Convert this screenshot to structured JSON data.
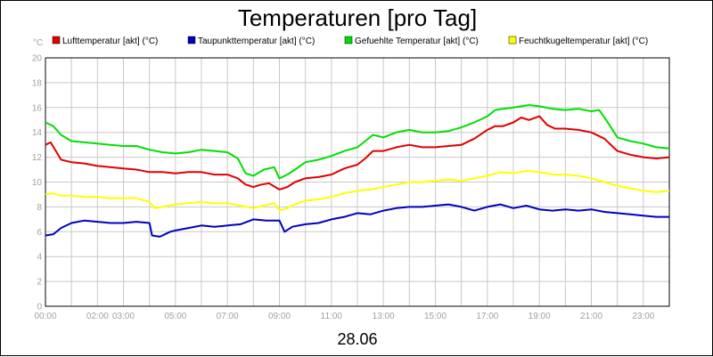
{
  "chart_data": {
    "type": "line",
    "title": "Temperaturen [pro Tag]",
    "y_unit_label": "°C",
    "date_label": "28.06",
    "ylim": [
      0,
      20
    ],
    "y_ticks": [
      0,
      2,
      4,
      6,
      8,
      10,
      12,
      14,
      16,
      18,
      20
    ],
    "x_ticks": [
      {
        "t": 0.0,
        "label": "00:00"
      },
      {
        "t": 2.0,
        "label": "02:00"
      },
      {
        "t": 3.0,
        "label": "03:00"
      },
      {
        "t": 5.0,
        "label": "05:00"
      },
      {
        "t": 7.0,
        "label": "07:00"
      },
      {
        "t": 9.0,
        "label": "09:00"
      },
      {
        "t": 11.0,
        "label": "11:00"
      },
      {
        "t": 13.0,
        "label": "13:00"
      },
      {
        "t": 15.0,
        "label": "15:00"
      },
      {
        "t": 17.0,
        "label": "17:00"
      },
      {
        "t": 19.0,
        "label": "19:00"
      },
      {
        "t": 21.0,
        "label": "21:00"
      },
      {
        "t": 23.0,
        "label": "23:00"
      }
    ],
    "x_grid_hours": [
      0,
      1,
      2,
      3,
      4,
      5,
      6,
      7,
      8,
      9,
      10,
      11,
      12,
      13,
      14,
      15,
      16,
      17,
      18,
      19,
      20,
      21,
      22,
      23,
      24
    ],
    "xlim_hours": [
      0,
      24
    ],
    "grid": true,
    "legend_position": "top",
    "series": [
      {
        "name": "Lufttemperatur [akt] (°C)",
        "color": "#e00000",
        "points": [
          [
            0,
            13.0
          ],
          [
            0.2,
            13.2
          ],
          [
            0.4,
            12.5
          ],
          [
            0.6,
            11.8
          ],
          [
            1,
            11.6
          ],
          [
            1.5,
            11.5
          ],
          [
            2,
            11.3
          ],
          [
            2.5,
            11.2
          ],
          [
            3,
            11.1
          ],
          [
            3.5,
            11.0
          ],
          [
            4,
            10.8
          ],
          [
            4.5,
            10.8
          ],
          [
            5,
            10.7
          ],
          [
            5.5,
            10.8
          ],
          [
            6,
            10.8
          ],
          [
            6.5,
            10.6
          ],
          [
            7,
            10.6
          ],
          [
            7.4,
            10.3
          ],
          [
            7.7,
            9.8
          ],
          [
            8,
            9.6
          ],
          [
            8.3,
            9.8
          ],
          [
            8.6,
            9.9
          ],
          [
            9,
            9.4
          ],
          [
            9.3,
            9.6
          ],
          [
            9.6,
            10.0
          ],
          [
            10,
            10.3
          ],
          [
            10.5,
            10.4
          ],
          [
            11,
            10.6
          ],
          [
            11.5,
            11.1
          ],
          [
            12,
            11.4
          ],
          [
            12.3,
            11.9
          ],
          [
            12.6,
            12.5
          ],
          [
            13,
            12.5
          ],
          [
            13.5,
            12.8
          ],
          [
            14,
            13.0
          ],
          [
            14.5,
            12.8
          ],
          [
            15,
            12.8
          ],
          [
            15.5,
            12.9
          ],
          [
            16,
            13.0
          ],
          [
            16.5,
            13.5
          ],
          [
            17,
            14.2
          ],
          [
            17.3,
            14.5
          ],
          [
            17.6,
            14.5
          ],
          [
            18,
            14.8
          ],
          [
            18.3,
            15.2
          ],
          [
            18.6,
            15.0
          ],
          [
            19,
            15.3
          ],
          [
            19.3,
            14.6
          ],
          [
            19.6,
            14.3
          ],
          [
            20,
            14.3
          ],
          [
            20.5,
            14.2
          ],
          [
            21,
            14.0
          ],
          [
            21.5,
            13.5
          ],
          [
            22,
            12.5
          ],
          [
            22.5,
            12.2
          ],
          [
            23,
            12.0
          ],
          [
            23.5,
            11.9
          ],
          [
            24,
            12.0
          ]
        ]
      },
      {
        "name": "Taupunkttemperatur [akt] (°C)",
        "color": "#0000c0",
        "points": [
          [
            0,
            5.7
          ],
          [
            0.3,
            5.8
          ],
          [
            0.6,
            6.3
          ],
          [
            1,
            6.7
          ],
          [
            1.5,
            6.9
          ],
          [
            2,
            6.8
          ],
          [
            2.5,
            6.7
          ],
          [
            3,
            6.7
          ],
          [
            3.5,
            6.8
          ],
          [
            4,
            6.7
          ],
          [
            4.1,
            5.7
          ],
          [
            4.4,
            5.6
          ],
          [
            4.8,
            6.0
          ],
          [
            5,
            6.1
          ],
          [
            5.5,
            6.3
          ],
          [
            6,
            6.5
          ],
          [
            6.5,
            6.4
          ],
          [
            7,
            6.5
          ],
          [
            7.5,
            6.6
          ],
          [
            8,
            7.0
          ],
          [
            8.5,
            6.9
          ],
          [
            9,
            6.9
          ],
          [
            9.2,
            6.0
          ],
          [
            9.5,
            6.4
          ],
          [
            10,
            6.6
          ],
          [
            10.5,
            6.7
          ],
          [
            11,
            7.0
          ],
          [
            11.5,
            7.2
          ],
          [
            12,
            7.5
          ],
          [
            12.5,
            7.4
          ],
          [
            13,
            7.7
          ],
          [
            13.5,
            7.9
          ],
          [
            14,
            8.0
          ],
          [
            14.5,
            8.0
          ],
          [
            15,
            8.1
          ],
          [
            15.5,
            8.2
          ],
          [
            16,
            8.0
          ],
          [
            16.5,
            7.7
          ],
          [
            17,
            8.0
          ],
          [
            17.5,
            8.2
          ],
          [
            18,
            7.9
          ],
          [
            18.5,
            8.1
          ],
          [
            19,
            7.8
          ],
          [
            19.5,
            7.7
          ],
          [
            20,
            7.8
          ],
          [
            20.5,
            7.7
          ],
          [
            21,
            7.8
          ],
          [
            21.5,
            7.6
          ],
          [
            22,
            7.5
          ],
          [
            22.5,
            7.4
          ],
          [
            23,
            7.3
          ],
          [
            23.5,
            7.2
          ],
          [
            24,
            7.2
          ]
        ]
      },
      {
        "name": "Gefuehlte Temperatur [akt] (°C)",
        "color": "#00e000",
        "points": [
          [
            0,
            14.8
          ],
          [
            0.3,
            14.5
          ],
          [
            0.6,
            13.8
          ],
          [
            1,
            13.3
          ],
          [
            1.5,
            13.2
          ],
          [
            2,
            13.1
          ],
          [
            2.5,
            13.0
          ],
          [
            3,
            12.9
          ],
          [
            3.5,
            12.9
          ],
          [
            4,
            12.6
          ],
          [
            4.5,
            12.4
          ],
          [
            5,
            12.3
          ],
          [
            5.5,
            12.4
          ],
          [
            6,
            12.6
          ],
          [
            6.5,
            12.5
          ],
          [
            7,
            12.4
          ],
          [
            7.4,
            11.9
          ],
          [
            7.7,
            10.7
          ],
          [
            8,
            10.5
          ],
          [
            8.4,
            11.0
          ],
          [
            8.8,
            11.2
          ],
          [
            9,
            10.3
          ],
          [
            9.3,
            10.6
          ],
          [
            9.6,
            11.0
          ],
          [
            10,
            11.6
          ],
          [
            10.5,
            11.8
          ],
          [
            11,
            12.1
          ],
          [
            11.5,
            12.5
          ],
          [
            12,
            12.8
          ],
          [
            12.3,
            13.3
          ],
          [
            12.6,
            13.8
          ],
          [
            13,
            13.6
          ],
          [
            13.5,
            14.0
          ],
          [
            14,
            14.2
          ],
          [
            14.5,
            14.0
          ],
          [
            15,
            14.0
          ],
          [
            15.5,
            14.1
          ],
          [
            16,
            14.4
          ],
          [
            16.5,
            14.8
          ],
          [
            17,
            15.3
          ],
          [
            17.3,
            15.8
          ],
          [
            17.6,
            15.9
          ],
          [
            18,
            16.0
          ],
          [
            18.3,
            16.1
          ],
          [
            18.6,
            16.2
          ],
          [
            19,
            16.1
          ],
          [
            19.5,
            15.9
          ],
          [
            20,
            15.8
          ],
          [
            20.5,
            15.9
          ],
          [
            21,
            15.7
          ],
          [
            21.3,
            15.8
          ],
          [
            21.6,
            14.9
          ],
          [
            22,
            13.6
          ],
          [
            22.5,
            13.3
          ],
          [
            23,
            13.1
          ],
          [
            23.5,
            12.8
          ],
          [
            24,
            12.7
          ]
        ]
      },
      {
        "name": "Feuchtkugeltemperatur [akt] (°C)",
        "color": "#ffff00",
        "points": [
          [
            0,
            9.0
          ],
          [
            0.3,
            9.1
          ],
          [
            0.6,
            8.9
          ],
          [
            1,
            8.9
          ],
          [
            1.5,
            8.8
          ],
          [
            2,
            8.8
          ],
          [
            2.5,
            8.7
          ],
          [
            3,
            8.7
          ],
          [
            3.5,
            8.7
          ],
          [
            4,
            8.4
          ],
          [
            4.2,
            7.9
          ],
          [
            4.5,
            8.0
          ],
          [
            5,
            8.2
          ],
          [
            5.5,
            8.3
          ],
          [
            6,
            8.4
          ],
          [
            6.5,
            8.3
          ],
          [
            7,
            8.3
          ],
          [
            7.5,
            8.1
          ],
          [
            8,
            7.9
          ],
          [
            8.4,
            8.1
          ],
          [
            8.8,
            8.3
          ],
          [
            9,
            7.7
          ],
          [
            9.3,
            7.9
          ],
          [
            9.6,
            8.2
          ],
          [
            10,
            8.5
          ],
          [
            10.5,
            8.6
          ],
          [
            11,
            8.8
          ],
          [
            11.5,
            9.1
          ],
          [
            12,
            9.3
          ],
          [
            12.5,
            9.4
          ],
          [
            13,
            9.6
          ],
          [
            13.5,
            9.8
          ],
          [
            14,
            10.0
          ],
          [
            14.5,
            10.0
          ],
          [
            15,
            10.1
          ],
          [
            15.5,
            10.2
          ],
          [
            16,
            10.1
          ],
          [
            16.5,
            10.3
          ],
          [
            17,
            10.5
          ],
          [
            17.5,
            10.8
          ],
          [
            18,
            10.7
          ],
          [
            18.5,
            10.9
          ],
          [
            19,
            10.8
          ],
          [
            19.5,
            10.6
          ],
          [
            20,
            10.6
          ],
          [
            20.5,
            10.5
          ],
          [
            21,
            10.3
          ],
          [
            21.5,
            10.0
          ],
          [
            22,
            9.7
          ],
          [
            22.5,
            9.5
          ],
          [
            23,
            9.3
          ],
          [
            23.5,
            9.2
          ],
          [
            24,
            9.3
          ]
        ]
      }
    ]
  }
}
